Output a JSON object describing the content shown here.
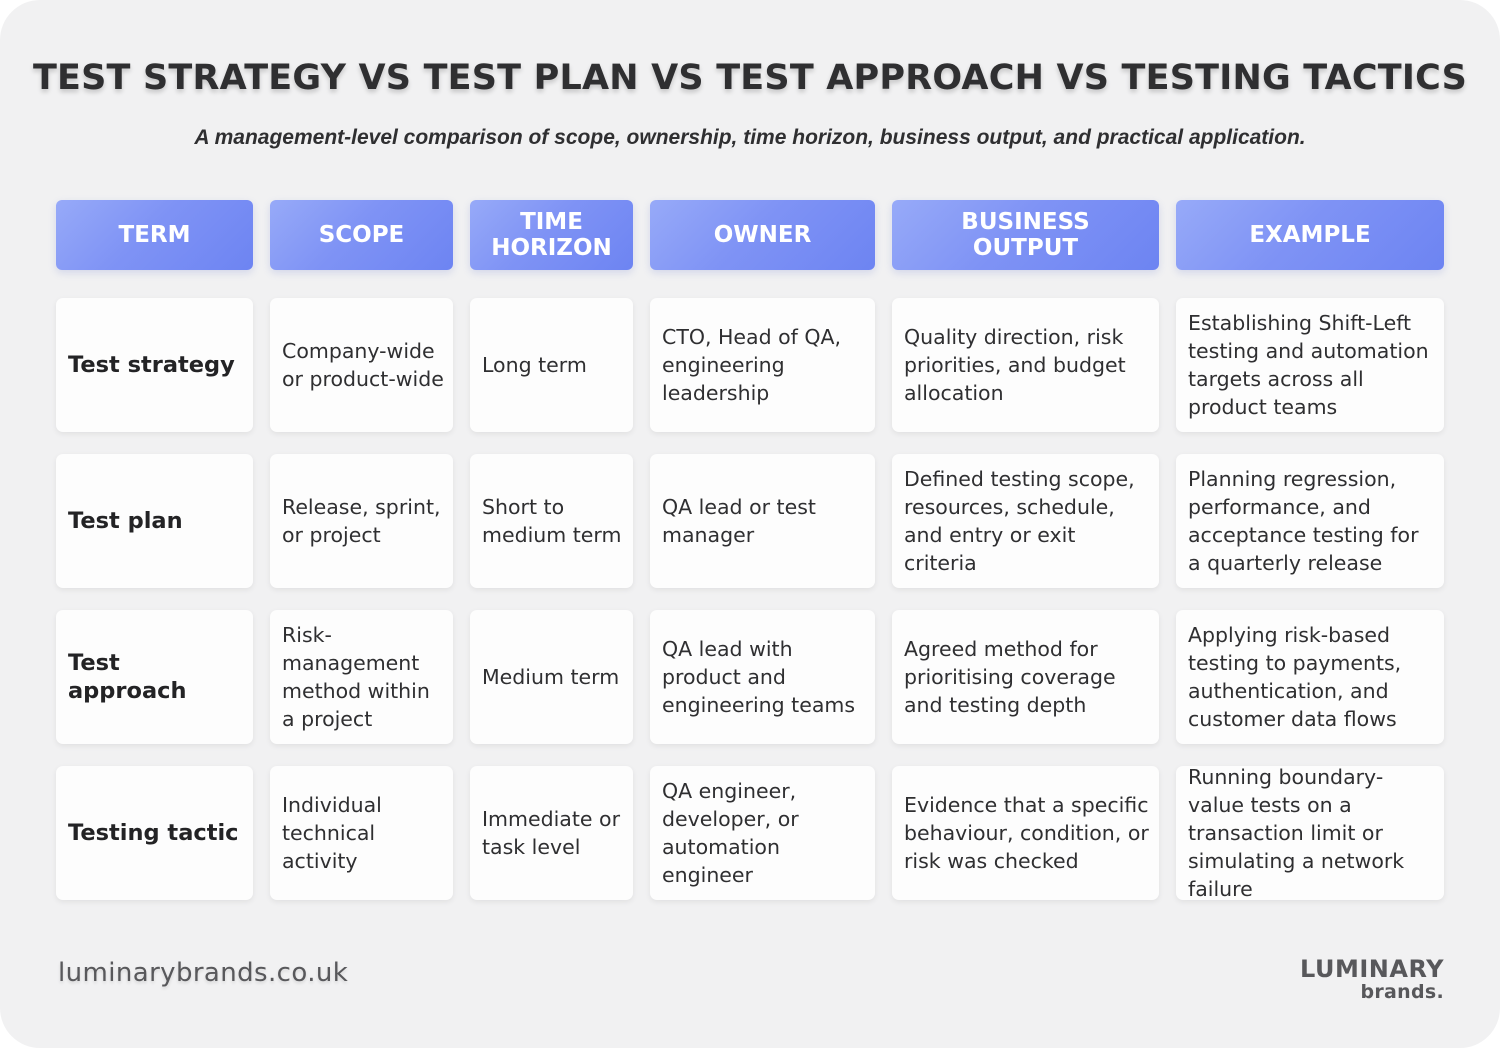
{
  "title": "TEST STRATEGY VS TEST PLAN VS TEST APPROACH VS TESTING TACTICS",
  "subtitle": "A management-level comparison of scope, ownership, time horizon, business output, and practical application.",
  "colors": {
    "background": "#f1f1f2",
    "header_gradient_start": "#97aaf8",
    "header_gradient_end": "#6d84f2",
    "text": "#2f2f31"
  },
  "table": {
    "headers": [
      "TERM",
      "SCOPE",
      "TIME\nHORIZON",
      "OWNER",
      "BUSINESS\nOUTPUT",
      "EXAMPLE"
    ],
    "rows": [
      [
        "Test strategy",
        "Company-wide or product-wide",
        "Long term",
        "CTO, Head of QA, engineering leadership",
        "Quality direction, risk priorities, and budget allocation",
        "Establishing Shift-Left testing and automation targets across all product teams"
      ],
      [
        "Test plan",
        "Release, sprint, or project",
        "Short to medium term",
        "QA lead or test manager",
        "Defined testing scope, resources, schedule, and entry or exit criteria",
        "Planning regression, performance, and acceptance testing for a quarterly release"
      ],
      [
        "Test approach",
        "Risk-management method within a project",
        "Medium term",
        "QA lead with product and engineering teams",
        "Agreed method for prioritising coverage and testing depth",
        "Applying risk-based testing to payments, authentication, and customer data flows"
      ],
      [
        "Testing tactic",
        "Individual technical activity",
        "Immediate or task level",
        "QA engineer, developer, or automation engineer",
        "Evidence that a specific behaviour, condition, or risk was checked",
        "Running boundary-value tests on a transaction limit or simulating a network failure"
      ]
    ]
  },
  "footer": {
    "url": "luminarybrands.co.uk",
    "logo_main": "LUMINARY",
    "logo_sub": "brands."
  }
}
